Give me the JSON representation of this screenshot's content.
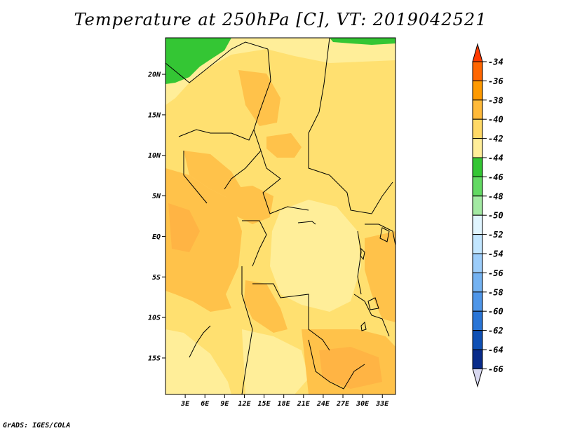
{
  "title": "Temperature at 250hPa [C], VT: 2019042521",
  "footer": "GrADS: IGES/COLA",
  "chart_data": {
    "type": "heatmap",
    "title": "Temperature at 250hPa [C], VT: 2019042521",
    "x": {
      "ticks": [
        "3E",
        "6E",
        "9E",
        "12E",
        "15E",
        "18E",
        "21E",
        "24E",
        "27E",
        "30E",
        "33E"
      ],
      "tick_values": [
        3,
        6,
        9,
        12,
        15,
        18,
        21,
        24,
        27,
        30,
        33
      ],
      "range": [
        0,
        35
      ]
    },
    "y": {
      "ticks": [
        "20N",
        "15N",
        "10N",
        "5N",
        "EQ",
        "5S",
        "10S",
        "15S"
      ],
      "tick_values": [
        20,
        15,
        10,
        5,
        0,
        -5,
        -10,
        -15
      ],
      "range": [
        -19.5,
        24.5
      ]
    },
    "colorbar": {
      "levels": [
        "-34",
        "-36",
        "-38",
        "-40",
        "-42",
        "-44",
        "-46",
        "-48",
        "-50",
        "-52",
        "-54",
        "-56",
        "-58",
        "-60",
        "-62",
        "-64",
        "-66"
      ],
      "colors": [
        "#ff3a00",
        "#ff6600",
        "#ff9a00",
        "#ffba3a",
        "#ffd966",
        "#ffee99",
        "#34c634",
        "#63d963",
        "#a3e9a3",
        "#e0f5ff",
        "#c2e6ff",
        "#9ccdfa",
        "#74b2f1",
        "#4f96e8",
        "#2a75d6",
        "#0f50b5",
        "#082b8a",
        "#000064",
        "#d8d8f0"
      ]
    },
    "field_colors": {
      "background": "#ffe070",
      "warmer": "#ffc24a",
      "warmest": "#ffb444",
      "cooler": "#ffee99",
      "coldest": "#34c634"
    }
  }
}
